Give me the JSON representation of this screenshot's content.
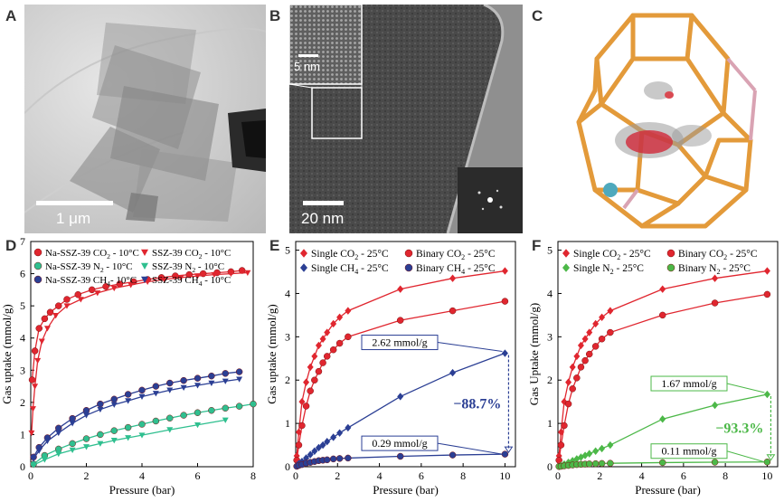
{
  "panels": {
    "A": {
      "letter": "A",
      "scale_label": "1 μm"
    },
    "B": {
      "letter": "B",
      "scale_label": "20 nm",
      "inset_scale_label": "5 nm"
    },
    "C": {
      "letter": "C"
    }
  },
  "chart_data": [
    {
      "id": "D",
      "letter": "D",
      "type": "line",
      "xlabel": "Pressure (bar)",
      "ylabel": "Gas uptake (mmol/g)",
      "xlim": [
        0,
        8
      ],
      "ylim": [
        0,
        7
      ],
      "xticks": [
        0,
        2,
        4,
        6,
        8
      ],
      "yticks": [
        0,
        1,
        2,
        3,
        4,
        5,
        6,
        7
      ],
      "legend": [
        {
          "label": "Na-SSZ-39 CO",
          "sub": "2",
          "suffix": " - 10°C",
          "color": "#e0262f",
          "marker": "circle"
        },
        {
          "label": "SSZ-39 CO",
          "sub": "2",
          "suffix": " - 10°C",
          "color": "#e0262f",
          "marker": "triangle-down"
        },
        {
          "label": "Na-SSZ-39 N",
          "sub": "2",
          "suffix": "  - 10°C",
          "color": "#2fbf8f",
          "marker": "circle"
        },
        {
          "label": "SSZ-39 N",
          "sub": "2",
          "suffix": "  - 10°C",
          "color": "#2fbf8f",
          "marker": "triangle-down"
        },
        {
          "label": "Na-SSZ-39 CH",
          "sub": "4",
          "suffix": "- 10°C",
          "color": "#2b3f94",
          "marker": "circle"
        },
        {
          "label": "SSZ-39 CH",
          "sub": "4",
          "suffix": " - 10°C",
          "color": "#2b3f94",
          "marker": "triangle-down"
        }
      ],
      "series": [
        {
          "name": "Na-SSZ-39 CO2 - 10°C",
          "color": "#e0262f",
          "marker": "circle",
          "x": [
            0.05,
            0.15,
            0.3,
            0.5,
            0.7,
            1.0,
            1.3,
            1.7,
            2.2,
            2.7,
            3.2,
            3.7,
            4.2,
            4.7,
            5.2,
            5.7,
            6.2,
            6.7,
            7.2,
            7.6
          ],
          "y": [
            2.7,
            3.6,
            4.3,
            4.6,
            4.8,
            5.0,
            5.2,
            5.35,
            5.5,
            5.6,
            5.68,
            5.75,
            5.82,
            5.88,
            5.93,
            5.97,
            6.0,
            6.03,
            6.06,
            6.1
          ]
        },
        {
          "name": "SSZ-39 CO2 - 10°C",
          "color": "#e0262f",
          "marker": "triangle-down",
          "x": [
            0.03,
            0.08,
            0.15,
            0.25,
            0.4,
            0.6,
            0.9,
            1.3,
            1.8,
            2.4,
            3.0,
            3.6,
            4.2,
            4.8,
            5.4,
            6.0,
            6.6,
            7.2,
            7.8
          ],
          "y": [
            1.05,
            1.8,
            2.5,
            3.3,
            3.9,
            4.3,
            4.7,
            5.0,
            5.2,
            5.4,
            5.55,
            5.65,
            5.75,
            5.82,
            5.88,
            5.93,
            5.97,
            6.0,
            6.03
          ]
        },
        {
          "name": "Na-SSZ-39 N2 - 10°C",
          "color": "#2fbf8f",
          "marker": "circle",
          "x": [
            0.1,
            0.5,
            1.0,
            1.5,
            2.0,
            2.5,
            3.0,
            3.5,
            4.0,
            4.5,
            5.0,
            5.5,
            6.0,
            6.5,
            7.0,
            7.5,
            8.0
          ],
          "y": [
            0.08,
            0.35,
            0.55,
            0.72,
            0.87,
            1.0,
            1.12,
            1.22,
            1.32,
            1.42,
            1.51,
            1.6,
            1.68,
            1.75,
            1.82,
            1.88,
            1.95
          ]
        },
        {
          "name": "SSZ-39 N2 - 10°C",
          "color": "#2fbf8f",
          "marker": "triangle-down",
          "x": [
            0.1,
            0.5,
            1.0,
            1.5,
            2.0,
            2.5,
            3.0,
            3.5,
            4.0,
            5.0,
            6.0,
            7.0
          ],
          "y": [
            0.05,
            0.22,
            0.4,
            0.52,
            0.62,
            0.72,
            0.82,
            0.9,
            0.98,
            1.15,
            1.3,
            1.45
          ]
        },
        {
          "name": "Na-SSZ-39 CH4 - 10°C",
          "color": "#2b3f94",
          "marker": "circle",
          "x": [
            0.1,
            0.3,
            0.6,
            1.0,
            1.5,
            2.0,
            2.5,
            3.0,
            3.5,
            4.0,
            4.5,
            5.0,
            5.5,
            6.0,
            6.5,
            7.0,
            7.5
          ],
          "y": [
            0.3,
            0.6,
            0.9,
            1.2,
            1.5,
            1.75,
            1.95,
            2.1,
            2.25,
            2.38,
            2.5,
            2.6,
            2.68,
            2.75,
            2.82,
            2.9,
            2.95
          ]
        },
        {
          "name": "SSZ-39 CH4 - 10°C",
          "color": "#2b3f94",
          "marker": "triangle-down",
          "x": [
            0.1,
            0.3,
            0.6,
            1.0,
            1.5,
            2.0,
            2.5,
            3.0,
            3.5,
            4.0,
            4.5,
            5.0,
            5.5,
            6.0,
            6.5,
            7.0,
            7.5
          ],
          "y": [
            0.25,
            0.5,
            0.8,
            1.05,
            1.35,
            1.6,
            1.78,
            1.93,
            2.05,
            2.18,
            2.28,
            2.38,
            2.46,
            2.53,
            2.6,
            2.66,
            2.72
          ]
        }
      ]
    },
    {
      "id": "E",
      "letter": "E",
      "type": "line",
      "xlabel": "Pressure (bar)",
      "ylabel": "Gas uptake (mmol/g)",
      "xlim": [
        0,
        10.5
      ],
      "ylim": [
        0,
        5.2
      ],
      "xticks": [
        0,
        2,
        4,
        6,
        8,
        10
      ],
      "yticks": [
        0,
        1,
        2,
        3,
        4,
        5
      ],
      "legend": [
        {
          "label": "Single CO",
          "sub": "2",
          "suffix": " - 25°C",
          "color": "#e0262f",
          "marker": "diamond"
        },
        {
          "label": "Binary CO",
          "sub": "2",
          "suffix": " - 25°C",
          "color": "#e0262f",
          "marker": "circle"
        },
        {
          "label": "Single CH",
          "sub": "4",
          "suffix": " - 25°C",
          "color": "#2b3f94",
          "marker": "diamond"
        },
        {
          "label": "Binary CH",
          "sub": "4",
          "suffix": " - 25°C",
          "color": "#2b3f94",
          "marker": "circle"
        }
      ],
      "series": [
        {
          "name": "Single CO2 - 25°C",
          "color": "#e0262f",
          "marker": "diamond",
          "x": [
            0.05,
            0.15,
            0.3,
            0.5,
            0.7,
            0.9,
            1.1,
            1.3,
            1.5,
            1.8,
            2.1,
            2.5,
            5.0,
            7.5,
            10.0
          ],
          "y": [
            0.25,
            0.8,
            1.5,
            1.95,
            2.3,
            2.55,
            2.8,
            2.95,
            3.1,
            3.3,
            3.45,
            3.6,
            4.1,
            4.35,
            4.52
          ]
        },
        {
          "name": "Binary CO2 - 25°C",
          "color": "#e0262f",
          "marker": "circle",
          "x": [
            0.05,
            0.15,
            0.3,
            0.5,
            0.7,
            0.9,
            1.1,
            1.3,
            1.5,
            1.8,
            2.1,
            2.5,
            5.0,
            7.5,
            10.0
          ],
          "y": [
            0.15,
            0.5,
            0.95,
            1.4,
            1.75,
            2.0,
            2.2,
            2.4,
            2.55,
            2.7,
            2.85,
            3.0,
            3.38,
            3.6,
            3.82
          ]
        },
        {
          "name": "Single CH4 - 25°C",
          "color": "#2b3f94",
          "marker": "diamond",
          "x": [
            0.05,
            0.15,
            0.3,
            0.5,
            0.7,
            0.9,
            1.1,
            1.3,
            1.5,
            1.8,
            2.1,
            2.5,
            5.0,
            7.5,
            10.0
          ],
          "y": [
            0.03,
            0.07,
            0.12,
            0.2,
            0.28,
            0.36,
            0.44,
            0.5,
            0.58,
            0.68,
            0.78,
            0.9,
            1.62,
            2.17,
            2.62
          ]
        },
        {
          "name": "Binary CH4 - 25°C",
          "color": "#2b3f94",
          "marker": "circle",
          "x": [
            0.05,
            0.15,
            0.3,
            0.5,
            0.7,
            0.9,
            1.1,
            1.3,
            1.5,
            1.8,
            2.1,
            2.5,
            5.0,
            7.5,
            10.0
          ],
          "y": [
            0.01,
            0.03,
            0.05,
            0.08,
            0.1,
            0.12,
            0.14,
            0.15,
            0.16,
            0.18,
            0.19,
            0.2,
            0.24,
            0.27,
            0.29
          ]
        }
      ],
      "annotations": {
        "upper_value": "2.62 mmol/g",
        "lower_value": "0.29 mmol/g",
        "percent": "−88.7%",
        "upper_y": 2.62,
        "lower_y": 0.29,
        "color": "#2b3f94"
      }
    },
    {
      "id": "F",
      "letter": "F",
      "type": "line",
      "xlabel": "Pressure (bar)",
      "ylabel": "Gas Uptake (mmol/g)",
      "xlim": [
        0,
        10.5
      ],
      "ylim": [
        0,
        5.2
      ],
      "xticks": [
        0,
        2,
        4,
        6,
        8,
        10
      ],
      "yticks": [
        0,
        1,
        2,
        3,
        4,
        5
      ],
      "legend": [
        {
          "label": "Single CO",
          "sub": "2",
          "suffix": " - 25°C",
          "color": "#e0262f",
          "marker": "diamond"
        },
        {
          "label": "Binary CO",
          "sub": "2",
          "suffix": " - 25°C",
          "color": "#e0262f",
          "marker": "circle"
        },
        {
          "label": "Single N",
          "sub": "2",
          "suffix": "   - 25°C",
          "color": "#4cb848",
          "marker": "diamond"
        },
        {
          "label": "Binary N",
          "sub": "2",
          "suffix": "    - 25°C",
          "color": "#4cb848",
          "marker": "circle"
        }
      ],
      "series": [
        {
          "name": "Single CO2 - 25°C",
          "color": "#e0262f",
          "marker": "diamond",
          "x": [
            0.05,
            0.15,
            0.3,
            0.5,
            0.7,
            0.9,
            1.1,
            1.3,
            1.5,
            1.8,
            2.1,
            2.5,
            5.0,
            7.5,
            10.0
          ],
          "y": [
            0.25,
            0.8,
            1.5,
            1.95,
            2.3,
            2.55,
            2.8,
            2.95,
            3.1,
            3.3,
            3.45,
            3.6,
            4.1,
            4.35,
            4.52
          ]
        },
        {
          "name": "Binary CO2 - 25°C",
          "color": "#e0262f",
          "marker": "circle",
          "x": [
            0.05,
            0.15,
            0.3,
            0.5,
            0.7,
            0.9,
            1.1,
            1.3,
            1.5,
            1.8,
            2.1,
            2.5,
            5.0,
            7.5,
            10.0
          ],
          "y": [
            0.15,
            0.5,
            0.95,
            1.45,
            1.8,
            2.05,
            2.3,
            2.45,
            2.6,
            2.78,
            2.95,
            3.1,
            3.5,
            3.78,
            3.98
          ]
        },
        {
          "name": "Single N2 - 25°C",
          "color": "#4cb848",
          "marker": "diamond",
          "x": [
            0.05,
            0.15,
            0.3,
            0.5,
            0.7,
            0.9,
            1.1,
            1.3,
            1.5,
            1.8,
            2.1,
            2.5,
            5.0,
            7.5,
            10.0
          ],
          "y": [
            0.01,
            0.03,
            0.06,
            0.1,
            0.14,
            0.18,
            0.22,
            0.26,
            0.3,
            0.36,
            0.42,
            0.5,
            1.1,
            1.42,
            1.67
          ]
        },
        {
          "name": "Binary N2 - 25°C",
          "color": "#4cb848",
          "marker": "circle",
          "x": [
            0.05,
            0.15,
            0.3,
            0.5,
            0.7,
            0.9,
            1.1,
            1.3,
            1.5,
            1.8,
            2.1,
            2.5,
            5.0,
            7.5,
            10.0
          ],
          "y": [
            0.005,
            0.01,
            0.02,
            0.03,
            0.04,
            0.05,
            0.055,
            0.06,
            0.065,
            0.07,
            0.075,
            0.08,
            0.095,
            0.105,
            0.11
          ]
        }
      ],
      "annotations": {
        "upper_value": "1.67 mmol/g",
        "lower_value": "0.11 mmol/g",
        "percent": "−93.3%",
        "upper_y": 1.67,
        "lower_y": 0.11,
        "color": "#4cb848"
      }
    }
  ]
}
